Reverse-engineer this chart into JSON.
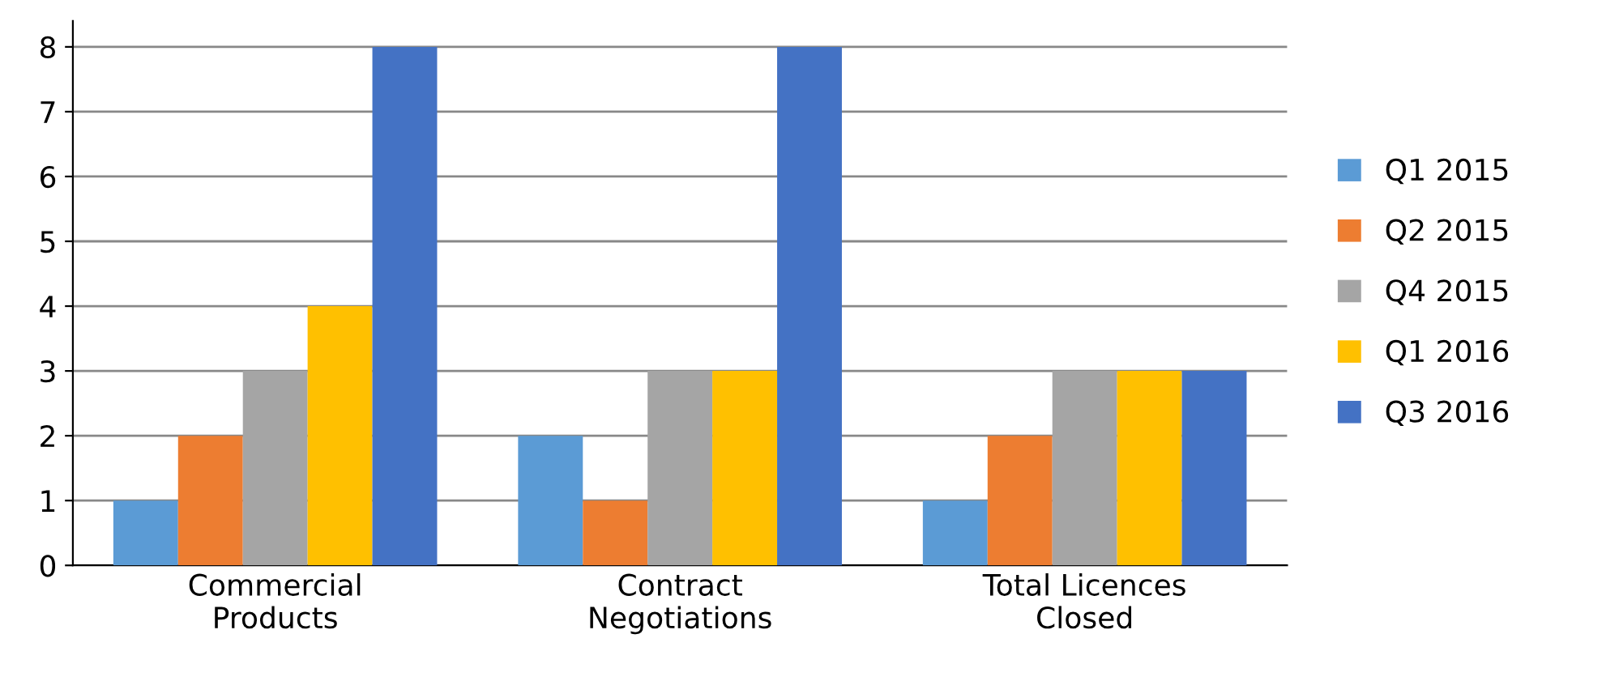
{
  "chart_data": {
    "type": "bar",
    "categories": [
      "Commercial\nProducts",
      "Contract\nNegotiations",
      "Total Licences\nClosed"
    ],
    "series": [
      {
        "name": "Q1 2015",
        "color": "#5b9bd5",
        "values": [
          1,
          2,
          1
        ]
      },
      {
        "name": "Q2 2015",
        "color": "#ed7d31",
        "values": [
          2,
          1,
          2
        ]
      },
      {
        "name": "Q4 2015",
        "color": "#a5a5a5",
        "values": [
          3,
          3,
          3
        ]
      },
      {
        "name": "Q1 2016",
        "color": "#ffc000",
        "values": [
          4,
          3,
          3
        ]
      },
      {
        "name": "Q3 2016",
        "color": "#4472c4",
        "values": [
          8,
          8,
          3
        ]
      }
    ],
    "ylim": [
      0,
      8.4
    ],
    "yticks": [
      0,
      1,
      2,
      3,
      4,
      5,
      6,
      7,
      8
    ],
    "grid": "y",
    "legend": "right"
  }
}
